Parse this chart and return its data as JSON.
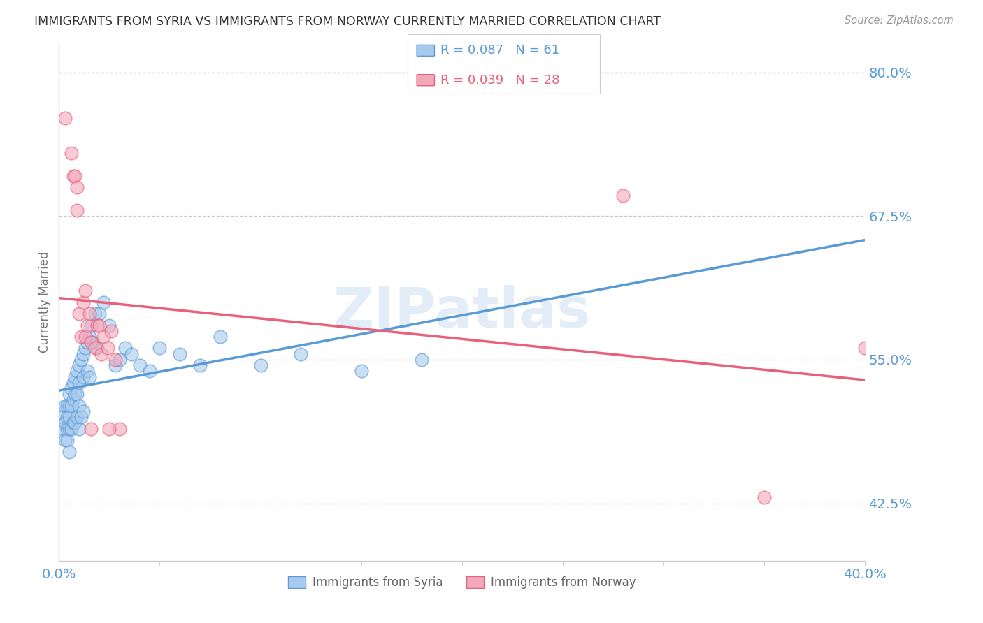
{
  "title": "IMMIGRANTS FROM SYRIA VS IMMIGRANTS FROM NORWAY CURRENTLY MARRIED CORRELATION CHART",
  "source": "Source: ZipAtlas.com",
  "ylabel": "Currently Married",
  "legend_syria": "Immigrants from Syria",
  "legend_norway": "Immigrants from Norway",
  "R_syria": 0.087,
  "N_syria": 61,
  "R_norway": 0.039,
  "N_norway": 28,
  "color_syria": "#A8CAEE",
  "color_norway": "#F4A8BC",
  "color_syria_line": "#5B9BD5",
  "color_norway_line": "#E8607A",
  "color_dashed": "#9DC3E6",
  "color_axis_labels": "#5B9BD5",
  "color_grid": "#C8C8C8",
  "watermark": "ZIPatlas",
  "xlim": [
    0.0,
    0.4
  ],
  "ylim": [
    0.375,
    0.825
  ],
  "yticks": [
    0.8,
    0.675,
    0.55,
    0.425
  ],
  "ytick_labels": [
    "80.0%",
    "67.5%",
    "55.0%",
    "42.5%"
  ],
  "xticks": [
    0.0,
    0.05,
    0.1,
    0.15,
    0.2,
    0.25,
    0.3,
    0.35,
    0.4
  ],
  "xtick_labels": [
    "0.0%",
    "",
    "",
    "",
    "",
    "",
    "",
    "",
    "40.0%"
  ],
  "syria_x": [
    0.002,
    0.002,
    0.003,
    0.003,
    0.003,
    0.004,
    0.004,
    0.004,
    0.004,
    0.005,
    0.005,
    0.005,
    0.005,
    0.005,
    0.006,
    0.006,
    0.006,
    0.007,
    0.007,
    0.007,
    0.008,
    0.008,
    0.008,
    0.009,
    0.009,
    0.009,
    0.01,
    0.01,
    0.01,
    0.01,
    0.011,
    0.011,
    0.012,
    0.012,
    0.012,
    0.013,
    0.014,
    0.014,
    0.015,
    0.015,
    0.016,
    0.017,
    0.018,
    0.019,
    0.02,
    0.022,
    0.025,
    0.028,
    0.03,
    0.033,
    0.036,
    0.04,
    0.045,
    0.05,
    0.06,
    0.07,
    0.08,
    0.1,
    0.12,
    0.15,
    0.18
  ],
  "syria_y": [
    0.5,
    0.49,
    0.51,
    0.495,
    0.48,
    0.51,
    0.5,
    0.49,
    0.48,
    0.52,
    0.51,
    0.5,
    0.49,
    0.47,
    0.525,
    0.51,
    0.49,
    0.53,
    0.515,
    0.495,
    0.535,
    0.52,
    0.495,
    0.54,
    0.52,
    0.5,
    0.545,
    0.53,
    0.51,
    0.49,
    0.55,
    0.5,
    0.555,
    0.535,
    0.505,
    0.56,
    0.565,
    0.54,
    0.57,
    0.535,
    0.58,
    0.565,
    0.59,
    0.56,
    0.59,
    0.6,
    0.58,
    0.545,
    0.55,
    0.56,
    0.555,
    0.545,
    0.54,
    0.56,
    0.555,
    0.545,
    0.57,
    0.545,
    0.555,
    0.54,
    0.55
  ],
  "norway_x": [
    0.003,
    0.006,
    0.007,
    0.008,
    0.009,
    0.009,
    0.01,
    0.011,
    0.012,
    0.013,
    0.013,
    0.014,
    0.015,
    0.016,
    0.018,
    0.019,
    0.021,
    0.022,
    0.024,
    0.026,
    0.028,
    0.03,
    0.28,
    0.35,
    0.4,
    0.025,
    0.016,
    0.02
  ],
  "norway_y": [
    0.76,
    0.73,
    0.71,
    0.71,
    0.7,
    0.68,
    0.59,
    0.57,
    0.6,
    0.61,
    0.57,
    0.58,
    0.59,
    0.565,
    0.56,
    0.58,
    0.555,
    0.57,
    0.56,
    0.575,
    0.55,
    0.49,
    0.693,
    0.43,
    0.56,
    0.49,
    0.49,
    0.58
  ],
  "background_color": "#FFFFFF"
}
